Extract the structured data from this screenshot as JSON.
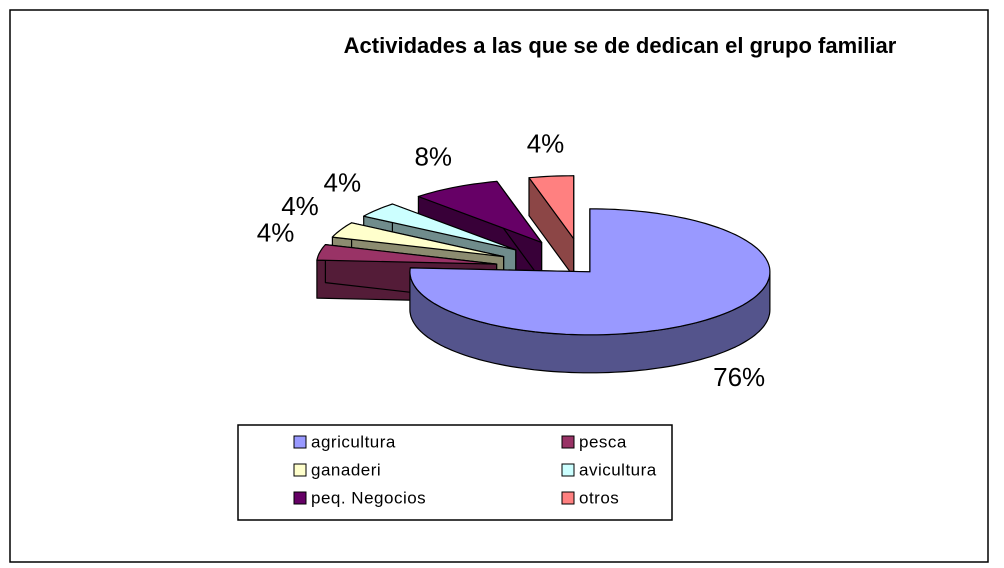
{
  "chart_data": {
    "type": "pie3d",
    "title": "Actividades a las que se de dedican el grupo familiar",
    "categories": [
      "agricultura",
      "pesca",
      "ganaderi",
      "avicultura",
      "peq. Negocios",
      "otros"
    ],
    "values": [
      76,
      4,
      4,
      4,
      8,
      4
    ],
    "value_labels": [
      "76%",
      "4%",
      "4%",
      "4%",
      "8%",
      "4%"
    ],
    "colors": [
      "#9999ff",
      "#993366",
      "#ffffcc",
      "#ccffff",
      "#660066",
      "#ff8080"
    ],
    "legend": "bottom"
  }
}
